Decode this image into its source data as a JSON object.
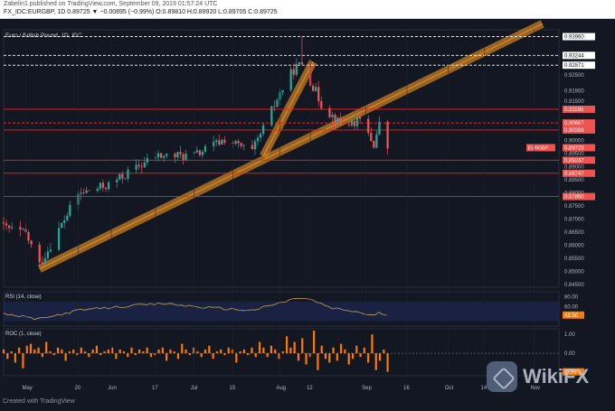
{
  "header": {
    "published": "Zabelin1 published on TradingView.com, September 09, 2019 01:57:24 UTC",
    "symbol": "FX_IDC:EURGBP, 1D",
    "ohlc_summary": "0.89725 ▼ −0.00895 (−0.99%) O:0.89810 H:0.89920 L:0.89705 C:0.89725"
  },
  "colors": {
    "background": "#131722",
    "up": "#26a69a",
    "down": "#ef5350",
    "trend_channel": "#c87d1f",
    "resistance_line": "#ff1e1e",
    "rsi_line": "#c8a24a",
    "roc_bar": "#ff7a00",
    "axis_text": "#b2b5be"
  },
  "footer": {
    "brand": "Created with TradingView"
  },
  "chart_data": [
    {
      "type": "candlestick",
      "title": "Euro / British Pound, 1D, IDC",
      "ylim": [
        0.844,
        0.9422
      ],
      "y_ticks": [
        "0.93960",
        "0.93244",
        "0.92871",
        "0.92500",
        "0.91900",
        "0.91500",
        "0.91190",
        "0.90667",
        "0.90398",
        "0.90000",
        "0.89725",
        "0.89500",
        "0.89247",
        "0.89000",
        "0.88747",
        "0.88500",
        "0.88000",
        "0.87860",
        "0.87500",
        "0.87000",
        "0.86500",
        "0.86000",
        "0.85500",
        "0.85000",
        "0.84500"
      ],
      "x_ticks": [
        "May",
        "20",
        "Jun",
        "17",
        "Jul",
        "15",
        "Aug",
        "12",
        "Sep",
        "16",
        "Oct",
        "14",
        "Nov"
      ],
      "price_label": {
        "text": "EURGBP",
        "value": 0.89725
      },
      "horizontal_levels": [
        {
          "value": 0.9396,
          "style": "dashed",
          "color": "#ffffff",
          "label": "0.93960"
        },
        {
          "value": 0.93244,
          "style": "dashed",
          "color": "#ffffff",
          "label": "0.93244"
        },
        {
          "value": 0.92871,
          "style": "dashed",
          "color": "#ffffff",
          "label": "0.92871"
        },
        {
          "value": 0.9119,
          "style": "solid",
          "color": "#ff1e1e",
          "label": "0.91190"
        },
        {
          "value": 0.90667,
          "style": "dashed",
          "color": "#ff1e1e",
          "label": "0.90667"
        },
        {
          "value": 0.90398,
          "style": "solid",
          "color": "#ff1e1e",
          "label": "0.90398"
        },
        {
          "value": 0.89247,
          "style": "solid",
          "color": "#ff1e1e",
          "label": "0.89247"
        },
        {
          "value": 0.88747,
          "style": "solid",
          "color": "#ff1e1e",
          "label": "0.88747"
        },
        {
          "value": 0.8786,
          "style": "solid",
          "color": "#ff1e1e",
          "label": "0.87860"
        }
      ],
      "trend_channels": [
        {
          "from": {
            "x": "2019-05-06",
            "y": 0.851
          },
          "to": {
            "x": "2019-11-04",
            "y": 0.9445
          }
        },
        {
          "from": {
            "x": "2019-07-26",
            "y": 0.894
          },
          "to": {
            "x": "2019-08-13",
            "y": 0.93
          }
        }
      ],
      "x_range": [
        "2019-04-23",
        "2019-11-10"
      ],
      "ohlc_anchors": [
        {
          "date": "2019-04-23",
          "close": 0.8668
        },
        {
          "date": "2019-05-01",
          "close": 0.8644
        },
        {
          "date": "2019-05-06",
          "close": 0.8525
        },
        {
          "date": "2019-05-20",
          "close": 0.8795
        },
        {
          "date": "2019-05-31",
          "close": 0.883
        },
        {
          "date": "2019-06-17",
          "close": 0.894
        },
        {
          "date": "2019-07-01",
          "close": 0.8942
        },
        {
          "date": "2019-07-12",
          "close": 0.9005
        },
        {
          "date": "2019-07-22",
          "close": 0.8955
        },
        {
          "date": "2019-08-01",
          "close": 0.918
        },
        {
          "date": "2019-08-06",
          "close": 0.927
        },
        {
          "date": "2019-08-09",
          "close": 0.9295
        },
        {
          "date": "2019-08-16",
          "close": 0.914
        },
        {
          "date": "2019-08-23",
          "close": 0.906
        },
        {
          "date": "2019-08-30",
          "close": 0.9075
        },
        {
          "date": "2019-09-04",
          "close": 0.8985
        },
        {
          "date": "2019-09-06",
          "close": 0.906
        },
        {
          "date": "2019-09-09",
          "close": 0.89725
        }
      ],
      "high_spike": {
        "date": "2019-08-09",
        "high": 0.9396
      }
    },
    {
      "type": "line",
      "title": "RSI (14, close)",
      "ylim": [
        20,
        90
      ],
      "y_ticks": [
        "80.00",
        "60.00"
      ],
      "value_label": "42.50",
      "x_range": [
        "2019-04-23",
        "2019-09-09"
      ],
      "anchors": [
        {
          "date": "2019-04-23",
          "value": 45
        },
        {
          "date": "2019-05-06",
          "value": 34
        },
        {
          "date": "2019-05-20",
          "value": 52
        },
        {
          "date": "2019-06-05",
          "value": 60
        },
        {
          "date": "2019-06-20",
          "value": 66
        },
        {
          "date": "2019-07-05",
          "value": 58
        },
        {
          "date": "2019-07-22",
          "value": 52
        },
        {
          "date": "2019-08-08",
          "value": 78
        },
        {
          "date": "2019-08-12",
          "value": 74
        },
        {
          "date": "2019-08-20",
          "value": 56
        },
        {
          "date": "2019-08-28",
          "value": 50
        },
        {
          "date": "2019-09-04",
          "value": 41
        },
        {
          "date": "2019-09-06",
          "value": 47
        },
        {
          "date": "2019-09-09",
          "value": 42.5
        }
      ]
    },
    {
      "type": "bar",
      "title": "ROC (1, close)",
      "ylim": [
        -1.2,
        1.3
      ],
      "y_ticks": [
        "1.00",
        "0.00",
        "-1.00"
      ],
      "value_label": "-0.99",
      "x_range": [
        "2019-04-23",
        "2019-09-09"
      ],
      "values": [
        0.2,
        -0.3,
        0.1,
        -0.5,
        0.3,
        -0.8,
        0.4,
        0.5,
        0.2,
        0.3,
        -0.2,
        0.6,
        0.1,
        -0.1,
        0.3,
        0.2,
        -0.4,
        0.1,
        0.2,
        -0.1,
        0.3,
        0.1,
        -0.2,
        0.2,
        0.4,
        -0.1,
        0.1,
        0.2,
        0.3,
        -0.3,
        0.2,
        0.1,
        -0.2,
        0.3,
        -0.1,
        0.2,
        0.1,
        0.3,
        -0.2,
        -0.1,
        0.2,
        0.3,
        -0.4,
        0.2,
        0.1,
        -0.3,
        0.5,
        0.2,
        -0.1,
        0.3,
        0.1,
        -0.2,
        0.2,
        0.4,
        -0.3,
        0.1,
        0.2,
        -0.1,
        0.3,
        0.2,
        -0.5,
        0.1,
        0.2,
        -0.1,
        0.3,
        -0.2,
        0.6,
        0.3,
        -0.2,
        0.4,
        0.2,
        -0.3,
        0.1,
        0.9,
        0.3,
        0.6,
        -0.4,
        0.8,
        -0.6,
        -0.2,
        1.2,
        -0.9,
        0.4,
        -0.3,
        -0.5,
        0.3,
        -0.4,
        0.5,
        0.2,
        -0.6,
        -0.3,
        0.4,
        -0.2,
        0.3,
        -0.5,
        1.0,
        -0.9,
        -0.4,
        0.2,
        -0.99
      ]
    }
  ]
}
